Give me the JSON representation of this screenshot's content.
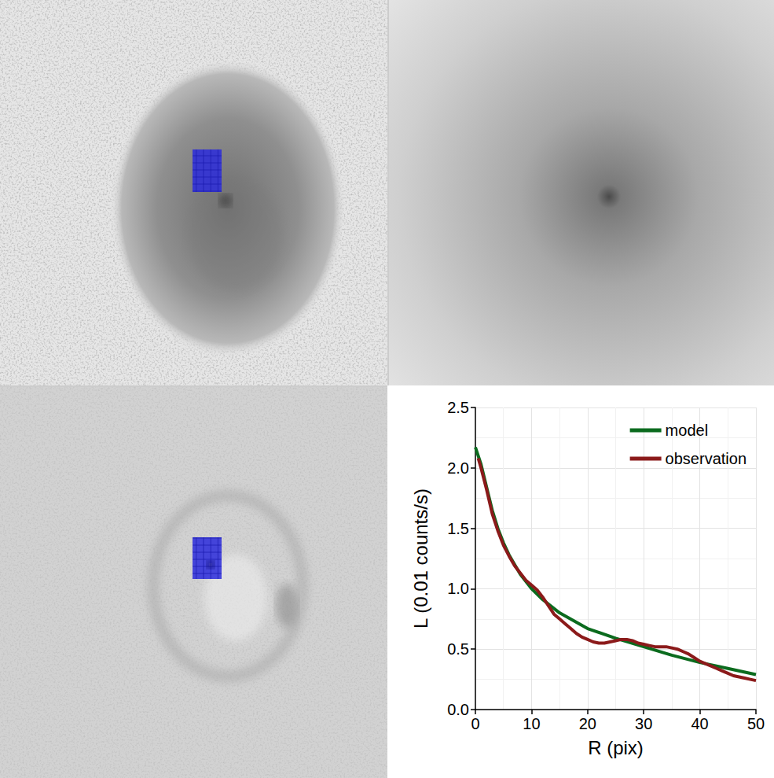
{
  "chart_data": {
    "type": "line",
    "x_label": "R (pix)",
    "y_label": "L (0.01 counts/s)",
    "xlim": [
      0,
      50
    ],
    "xticks": [
      0,
      10,
      20,
      30,
      40,
      50
    ],
    "ylim": [
      0,
      2.5
    ],
    "yticks": [
      {
        "value": 0,
        "label": "0.0"
      },
      0.5,
      {
        "value": 1,
        "label": "1.0"
      },
      1.5,
      {
        "value": 2,
        "label": "2.0"
      },
      2.5
    ],
    "grid": true,
    "legend": "top-right",
    "series": [
      {
        "name": "model",
        "color": "#0b6b1e",
        "x": [
          0,
          1,
          2,
          3,
          4,
          5,
          6,
          8,
          10,
          12,
          15,
          20,
          25,
          30,
          35,
          40,
          45,
          50
        ],
        "values": [
          2.17,
          2.03,
          1.84,
          1.65,
          1.5,
          1.38,
          1.28,
          1.12,
          1.0,
          0.91,
          0.8,
          0.67,
          0.59,
          0.52,
          0.45,
          0.39,
          0.34,
          0.29
        ]
      },
      {
        "name": "observation",
        "color": "#8b1a1a",
        "x": [
          0.5,
          1,
          2,
          3,
          4,
          5,
          6,
          7,
          8,
          9,
          10,
          11,
          12,
          13,
          14,
          15,
          16,
          17,
          18,
          19,
          20,
          21,
          22,
          23,
          24,
          25,
          26,
          27,
          28,
          29,
          30,
          31,
          32,
          33,
          34,
          35,
          36,
          37,
          38,
          39,
          40,
          41,
          42,
          43,
          44,
          45,
          46,
          47,
          48,
          49,
          50
        ],
        "values": [
          2.08,
          2.0,
          1.82,
          1.62,
          1.48,
          1.36,
          1.27,
          1.19,
          1.13,
          1.07,
          1.03,
          0.99,
          0.93,
          0.86,
          0.79,
          0.75,
          0.71,
          0.67,
          0.63,
          0.6,
          0.58,
          0.56,
          0.55,
          0.55,
          0.56,
          0.57,
          0.58,
          0.58,
          0.57,
          0.55,
          0.54,
          0.53,
          0.52,
          0.52,
          0.52,
          0.51,
          0.5,
          0.48,
          0.46,
          0.43,
          0.4,
          0.38,
          0.36,
          0.34,
          0.32,
          0.3,
          0.28,
          0.27,
          0.26,
          0.25,
          0.24
        ]
      }
    ]
  }
}
